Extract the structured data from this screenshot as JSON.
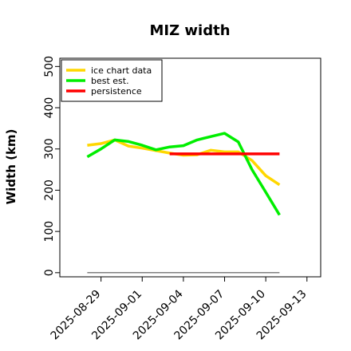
{
  "chart_data": {
    "type": "line",
    "title": "MIZ width",
    "xlabel": "",
    "ylabel": "Width (km)",
    "ylim": [
      -10,
      520
    ],
    "yticks": [
      0,
      100,
      200,
      300,
      400,
      500
    ],
    "xlim": [
      "2025-08-26",
      "2025-09-14"
    ],
    "xticks": [
      "2025-08-29",
      "2025-09-01",
      "2025-09-04",
      "2025-09-07",
      "2025-09-10",
      "2025-09-13"
    ],
    "grid": false,
    "legend_position": "top-left",
    "series": [
      {
        "name": "ice chart data",
        "color": "#ffd700",
        "x": [
          "2025-08-28",
          "2025-08-29",
          "2025-08-30",
          "2025-08-31",
          "2025-09-01",
          "2025-09-02",
          "2025-09-03",
          "2025-09-04",
          "2025-09-05",
          "2025-09-06",
          "2025-09-07",
          "2025-09-08",
          "2025-09-09",
          "2025-09-10",
          "2025-09-11"
        ],
        "values": [
          309,
          313,
          322,
          307,
          302,
          296,
          290,
          285,
          286,
          297,
          293,
          293,
          272,
          235,
          213
        ]
      },
      {
        "name": "best est.",
        "color": "#00ee00",
        "x": [
          "2025-08-28",
          "2025-08-29",
          "2025-08-30",
          "2025-08-31",
          "2025-09-01",
          "2025-09-02",
          "2025-09-03",
          "2025-09-04",
          "2025-09-05",
          "2025-09-06",
          "2025-09-07",
          "2025-09-08",
          "2025-09-09",
          "2025-09-10",
          "2025-09-11"
        ],
        "values": [
          281,
          300,
          322,
          318,
          309,
          298,
          305,
          308,
          322,
          330,
          338,
          317,
          250,
          195,
          140
        ]
      },
      {
        "name": "persistence",
        "color": "#ff0000",
        "x": [
          "2025-09-03",
          "2025-09-11"
        ],
        "values": [
          288,
          288
        ]
      },
      {
        "name": "",
        "color": "#808080",
        "x": [
          "2025-08-28",
          "2025-09-11"
        ],
        "values": [
          0,
          0
        ]
      }
    ]
  }
}
